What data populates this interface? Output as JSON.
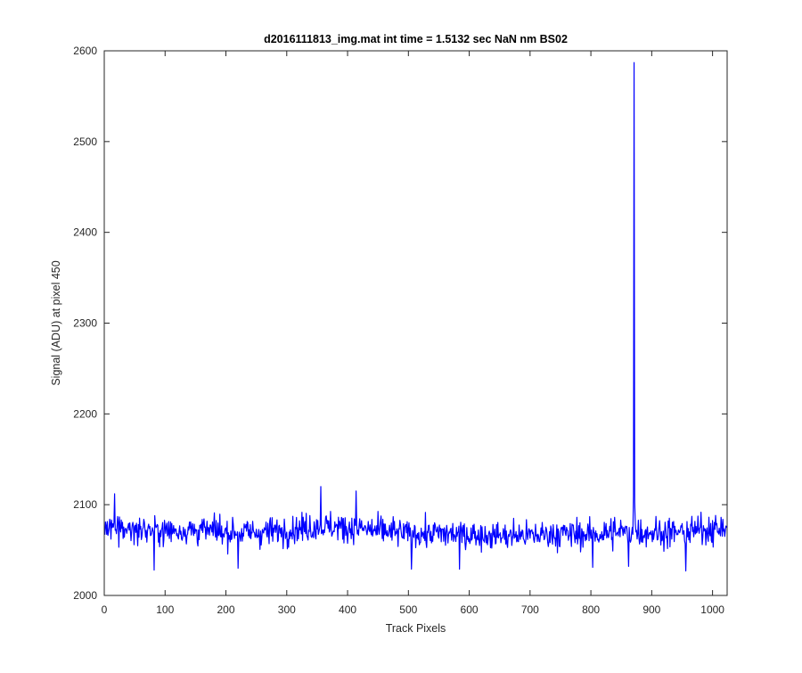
{
  "chart_data": {
    "type": "line",
    "title": "d2016111813_img.mat int time = 1.5132 sec  NaN nm BS02",
    "xlabel": "Track Pixels",
    "ylabel": "Signal (ADU) at pixel 450",
    "xlim": [
      0,
      1024
    ],
    "ylim": [
      2000,
      2600
    ],
    "xticks": [
      0,
      100,
      200,
      300,
      400,
      500,
      600,
      700,
      800,
      900,
      1000
    ],
    "yticks": [
      2000,
      2100,
      2200,
      2300,
      2400,
      2500,
      2600
    ],
    "grid": false,
    "series": [
      {
        "color": "#0000ff",
        "noise_profile": {
          "x": [
            0,
            50,
            100,
            150,
            200,
            250,
            300,
            350,
            400,
            450,
            500,
            550,
            600,
            650,
            700,
            750,
            800,
            850,
            900,
            950,
            1000,
            1024
          ],
          "baseline": [
            2075,
            2073,
            2071,
            2072,
            2070,
            2069,
            2072,
            2076,
            2075,
            2071,
            2068,
            2068,
            2067,
            2066,
            2066,
            2068,
            2067,
            2070,
            2070,
            2069,
            2074,
            2073
          ],
          "min": 2027,
          "max": 2120
        },
        "highlights": [
          {
            "x": 17,
            "y": 2112
          },
          {
            "x": 82,
            "y": 2028
          },
          {
            "x": 220,
            "y": 2030
          },
          {
            "x": 356,
            "y": 2120
          },
          {
            "x": 414,
            "y": 2115
          },
          {
            "x": 505,
            "y": 2029
          },
          {
            "x": 584,
            "y": 2029
          },
          {
            "x": 803,
            "y": 2031
          },
          {
            "x": 862,
            "y": 2032
          },
          {
            "x": 956,
            "y": 2027
          }
        ],
        "spike": {
          "points": [
            {
              "x": 868,
              "y": 2075
            },
            {
              "x": 870,
              "y": 2110
            },
            {
              "x": 871,
              "y": 2587
            },
            {
              "x": 872,
              "y": 2103
            },
            {
              "x": 874,
              "y": 2070
            }
          ]
        }
      }
    ]
  }
}
